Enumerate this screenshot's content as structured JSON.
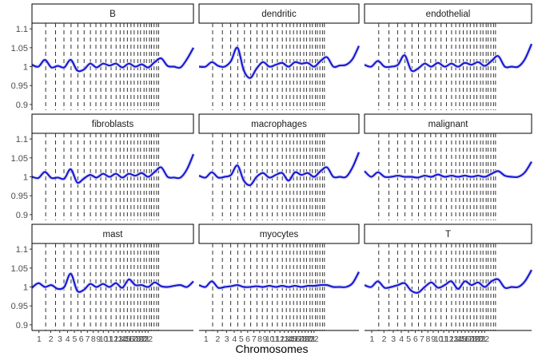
{
  "chart_data": {
    "type": "line",
    "layout": "3x3 facet grid",
    "xlabel": "Chromosomes",
    "ylabel": "",
    "ylim": [
      0.885,
      1.115
    ],
    "yticks": [
      {
        "value": 0.9,
        "label": "0.9"
      },
      {
        "value": 0.95,
        "label": "0.95"
      },
      {
        "value": 1,
        "label": "1"
      },
      {
        "value": 1.05,
        "label": "1.05"
      },
      {
        "value": 1.1,
        "label": "1.1"
      }
    ],
    "xlim": [
      0,
      100
    ],
    "chromosome_boundaries": [
      8.5,
      14.6,
      19.8,
      24.2,
      28.4,
      32.3,
      36.2,
      39.6,
      42.6,
      45.8,
      49.0,
      52.1,
      54.6,
      56.9,
      59.1,
      61.3,
      63.3,
      65.5,
      67.2,
      69.4,
      70.9,
      72.8,
      74.0,
      75.6,
      77.2,
      78.4
    ],
    "xticks": [
      {
        "value": 4.3,
        "label": "1"
      },
      {
        "value": 11.6,
        "label": "2"
      },
      {
        "value": 17.2,
        "label": "3"
      },
      {
        "value": 22.0,
        "label": "4"
      },
      {
        "value": 26.3,
        "label": "5"
      },
      {
        "value": 30.4,
        "label": "6"
      },
      {
        "value": 34.3,
        "label": "7"
      },
      {
        "value": 37.9,
        "label": "8"
      },
      {
        "value": 41.1,
        "label": "9"
      },
      {
        "value": 44.2,
        "label": "10"
      },
      {
        "value": 47.4,
        "label": "11"
      },
      {
        "value": 50.6,
        "label": "12"
      },
      {
        "value": 53.4,
        "label": "13"
      },
      {
        "value": 55.8,
        "label": "14"
      },
      {
        "value": 58.0,
        "label": "15"
      },
      {
        "value": 60.2,
        "label": "16"
      },
      {
        "value": 62.3,
        "label": "17"
      },
      {
        "value": 64.4,
        "label": "18"
      },
      {
        "value": 66.4,
        "label": "19"
      },
      {
        "value": 68.3,
        "label": "20"
      },
      {
        "value": 70.2,
        "label": "21"
      },
      {
        "value": 71.9,
        "label": "22"
      }
    ],
    "line_color": "#1a1ad6",
    "boundary_color": "#333333",
    "panels": [
      {
        "title": "B",
        "show_y_axis": true,
        "show_x_axis": false,
        "x": [
          0,
          4,
          8,
          12,
          16,
          20,
          24,
          28,
          32,
          36,
          40,
          44,
          48,
          52,
          56,
          60,
          64,
          68,
          72,
          76,
          80,
          84,
          88,
          92,
          96,
          100
        ],
        "y": [
          1.005,
          1.0,
          1.018,
          0.998,
          1.002,
          0.998,
          1.018,
          0.99,
          0.992,
          1.008,
          0.998,
          1.008,
          1.003,
          1.008,
          0.998,
          1.008,
          1.0,
          1.006,
          0.998,
          1.012,
          1.022,
          1.002,
          1.0,
          0.998,
          1.02,
          1.05
        ]
      },
      {
        "title": "dendritic",
        "show_y_axis": false,
        "show_x_axis": false,
        "x": [
          0,
          4,
          8,
          12,
          16,
          20,
          24,
          28,
          32,
          36,
          40,
          44,
          48,
          52,
          56,
          60,
          64,
          68,
          72,
          76,
          80,
          84,
          88,
          92,
          96,
          100
        ],
        "y": [
          1.0,
          1.0,
          1.012,
          1.002,
          1.0,
          1.015,
          1.05,
          0.99,
          0.97,
          0.995,
          1.012,
          1.0,
          1.005,
          1.01,
          1.0,
          1.012,
          1.008,
          1.01,
          1.0,
          1.015,
          1.025,
          1.0,
          1.003,
          1.005,
          1.02,
          1.055
        ]
      },
      {
        "title": "endothelial",
        "show_y_axis": false,
        "show_x_axis": false,
        "x": [
          0,
          4,
          8,
          12,
          16,
          20,
          24,
          28,
          32,
          36,
          40,
          44,
          48,
          52,
          56,
          60,
          64,
          68,
          72,
          76,
          80,
          84,
          88,
          92,
          96,
          100
        ],
        "y": [
          1.005,
          1.0,
          1.015,
          1.0,
          1.0,
          1.005,
          1.03,
          0.99,
          0.995,
          1.008,
          1.0,
          1.01,
          1.0,
          1.008,
          1.0,
          1.01,
          1.005,
          1.012,
          1.002,
          1.015,
          1.028,
          1.0,
          1.0,
          1.0,
          1.02,
          1.06
        ]
      },
      {
        "title": "fibroblasts",
        "show_y_axis": true,
        "show_x_axis": false,
        "x": [
          0,
          4,
          8,
          12,
          16,
          20,
          24,
          28,
          32,
          36,
          40,
          44,
          48,
          52,
          56,
          60,
          64,
          68,
          72,
          76,
          80,
          84,
          88,
          92,
          96,
          100
        ],
        "y": [
          1.0,
          0.997,
          1.013,
          0.997,
          0.998,
          0.995,
          1.02,
          0.985,
          0.995,
          1.005,
          0.998,
          1.008,
          1.0,
          1.008,
          0.998,
          1.008,
          1.003,
          1.01,
          1.0,
          1.013,
          1.025,
          1.0,
          0.998,
          0.998,
          1.02,
          1.06
        ]
      },
      {
        "title": "macrophages",
        "show_y_axis": false,
        "show_x_axis": false,
        "x": [
          0,
          4,
          8,
          12,
          16,
          20,
          24,
          28,
          32,
          36,
          40,
          44,
          48,
          52,
          56,
          60,
          64,
          68,
          72,
          76,
          80,
          84,
          88,
          92,
          96,
          100
        ],
        "y": [
          1.003,
          0.998,
          1.012,
          0.998,
          1.0,
          1.005,
          1.03,
          0.99,
          0.978,
          1.0,
          1.01,
          0.998,
          1.005,
          1.01,
          0.99,
          1.012,
          1.005,
          1.01,
          1.0,
          1.015,
          1.025,
          1.0,
          1.0,
          1.0,
          1.025,
          1.065
        ]
      },
      {
        "title": "malignant",
        "show_y_axis": false,
        "show_x_axis": false,
        "x": [
          0,
          4,
          8,
          12,
          16,
          20,
          24,
          28,
          32,
          36,
          40,
          44,
          48,
          52,
          56,
          60,
          64,
          68,
          72,
          76,
          80,
          84,
          88,
          92,
          96,
          100
        ],
        "y": [
          1.015,
          1.0,
          1.012,
          1.0,
          1.0,
          1.003,
          1.0,
          1.0,
          0.998,
          1.003,
          1.0,
          1.006,
          1.0,
          1.003,
          1.0,
          1.003,
          1.0,
          1.003,
          1.0,
          1.008,
          1.015,
          1.003,
          1.0,
          1.0,
          1.012,
          1.04
        ]
      },
      {
        "title": "mast",
        "show_y_axis": true,
        "show_x_axis": true,
        "x": [
          0,
          4,
          8,
          12,
          16,
          20,
          24,
          28,
          32,
          36,
          40,
          44,
          48,
          52,
          56,
          60,
          64,
          68,
          72,
          76,
          80,
          84,
          88,
          92,
          96,
          100
        ],
        "y": [
          0.998,
          1.01,
          1.0,
          1.005,
          0.995,
          1.0,
          1.035,
          0.99,
          0.992,
          1.008,
          1.0,
          1.008,
          1.0,
          1.01,
          0.998,
          1.02,
          1.005,
          1.005,
          1.0,
          1.012,
          1.002,
          1.0,
          1.003,
          1.005,
          1.0,
          1.015
        ]
      },
      {
        "title": "myocytes",
        "show_y_axis": false,
        "show_x_axis": true,
        "x": [
          0,
          4,
          8,
          12,
          16,
          20,
          24,
          28,
          32,
          36,
          40,
          44,
          48,
          52,
          56,
          60,
          64,
          68,
          72,
          76,
          80,
          84,
          88,
          92,
          96,
          100
        ],
        "y": [
          1.005,
          1.0,
          1.015,
          0.998,
          1.0,
          1.002,
          1.005,
          1.0,
          1.0,
          1.002,
          1.0,
          1.003,
          1.0,
          1.003,
          1.0,
          1.003,
          1.0,
          1.003,
          1.003,
          1.005,
          1.005,
          1.0,
          1.0,
          1.0,
          1.01,
          1.04
        ]
      },
      {
        "title": "T",
        "show_y_axis": false,
        "show_x_axis": true,
        "x": [
          0,
          4,
          8,
          12,
          16,
          20,
          24,
          28,
          32,
          36,
          40,
          44,
          48,
          52,
          56,
          60,
          64,
          68,
          72,
          76,
          80,
          84,
          88,
          92,
          96,
          100
        ],
        "y": [
          1.005,
          1.0,
          1.015,
          0.998,
          1.0,
          1.005,
          1.01,
          0.99,
          0.985,
          1.0,
          1.012,
          0.998,
          1.005,
          1.015,
          0.995,
          1.015,
          1.005,
          1.012,
          1.0,
          1.015,
          1.02,
          0.998,
          1.0,
          1.0,
          1.015,
          1.045
        ]
      }
    ]
  }
}
